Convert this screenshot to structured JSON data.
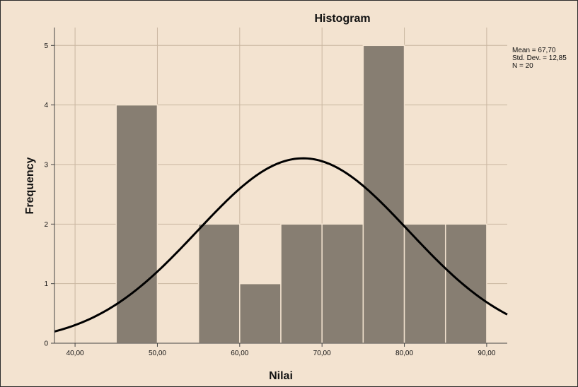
{
  "chart_data": {
    "type": "bar",
    "title": "Histogram",
    "xlabel": "Nilai",
    "ylabel": "Frequency",
    "bins": [
      {
        "from": 45,
        "to": 50,
        "count": 4
      },
      {
        "from": 50,
        "to": 55,
        "count": 0
      },
      {
        "from": 55,
        "to": 60,
        "count": 2
      },
      {
        "from": 60,
        "to": 65,
        "count": 1
      },
      {
        "from": 65,
        "to": 70,
        "count": 2
      },
      {
        "from": 70,
        "to": 75,
        "count": 2
      },
      {
        "from": 75,
        "to": 80,
        "count": 5
      },
      {
        "from": 80,
        "to": 85,
        "count": 2
      },
      {
        "from": 85,
        "to": 90,
        "count": 2
      }
    ],
    "xlim": [
      37.5,
      92.5
    ],
    "ylim": [
      0,
      5.3
    ],
    "x_ticks": [
      "40,00",
      "50,00",
      "60,00",
      "70,00",
      "80,00",
      "90,00"
    ],
    "x_tick_values": [
      40,
      50,
      60,
      70,
      80,
      90
    ],
    "y_ticks": [
      "0",
      "1",
      "2",
      "3",
      "4",
      "5"
    ],
    "y_tick_values": [
      0,
      1,
      2,
      3,
      4,
      5
    ],
    "grid": true,
    "normal_curve": {
      "mean": 67.7,
      "sd": 12.85,
      "n": 20,
      "bin_width": 5
    },
    "stats": {
      "mean": "Mean = 67,70",
      "std_dev": "Std. Dev. = 12,85",
      "n": "N = 20"
    },
    "colors": {
      "background": "#f3e3d0",
      "bar_fill": "#877e72",
      "bar_edge": "#f3e3d0",
      "grid": "#c9b6a0",
      "curve": "#000000"
    }
  }
}
